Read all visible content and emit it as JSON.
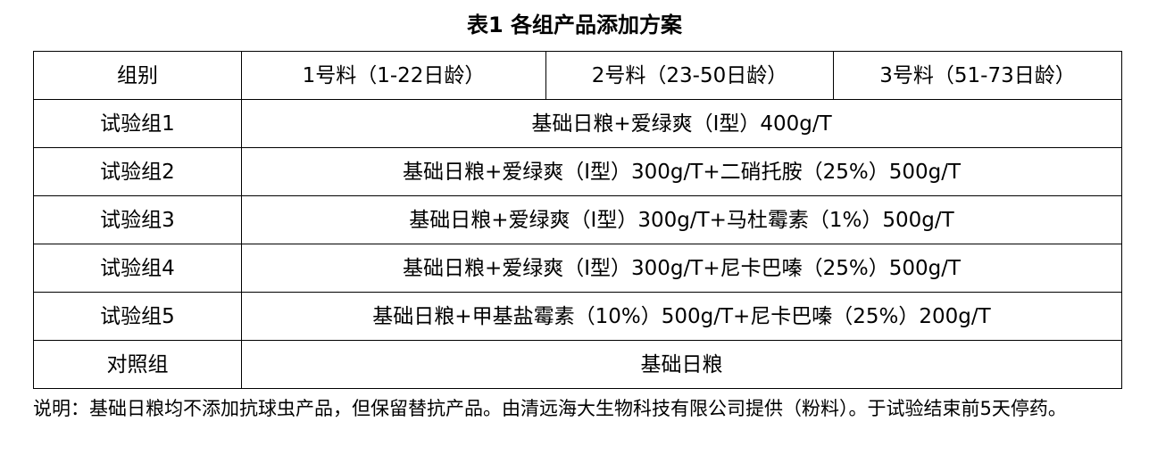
{
  "title": "表1 各组产品添加方案",
  "table": {
    "headers": [
      "组别",
      "1号料（1-22日龄）",
      "2号料（23-50日龄）",
      "3号料（51-73日龄）"
    ],
    "rows": [
      {
        "group": "试验组1",
        "plan": "基础日粮+爱绿爽（Ⅰ型）400g/T"
      },
      {
        "group": "试验组2",
        "plan": "基础日粮+爱绿爽（Ⅰ型）300g/T+二硝托胺（25%）500g/T"
      },
      {
        "group": "试验组3",
        "plan": "基础日粮+爱绿爽（Ⅰ型）300g/T+马杜霉素（1%）500g/T"
      },
      {
        "group": "试验组4",
        "plan": "基础日粮+爱绿爽（Ⅰ型）300g/T+尼卡巴嗪（25%）500g/T"
      },
      {
        "group": "试验组5",
        "plan": "基础日粮+甲基盐霉素（10%）500g/T+尼卡巴嗪（25%）200g/T"
      },
      {
        "group": "对照组",
        "plan": "基础日粮"
      }
    ]
  },
  "note": "说明：基础日粮均不添加抗球虫产品，但保留替抗产品。由清远海大生物科技有限公司提供（粉料）。于试验结束前5天停药。"
}
